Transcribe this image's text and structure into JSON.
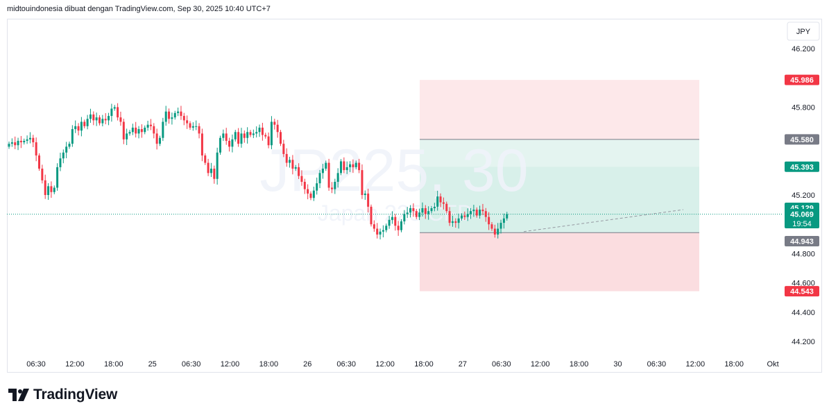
{
  "header": {
    "caption": "midtouindonesia dibuat dengan TradingView.com, Sep 30, 2025 10:40 UTC+7"
  },
  "watermark": {
    "symbol": "JP225, 30",
    "description": "Japan 225 CFD"
  },
  "currency_button": "JPY",
  "brand": {
    "name": "TradingView"
  },
  "colors": {
    "up": "#089981",
    "down": "#f23645",
    "stop_zone": "#fbdde0",
    "target_zone": "#d8f0ea",
    "marker_grey": "#787b86",
    "axis_text": "#131722"
  },
  "chart_data": {
    "type": "candlestick",
    "timeframe": "30",
    "y_axis": {
      "range": [
        44.1,
        46.35
      ],
      "ticks": [
        "46.200",
        "45.800",
        "45.200",
        "44.800",
        "44.600",
        "44.400",
        "44.200"
      ],
      "tick_values": [
        46.2,
        45.8,
        45.2,
        44.8,
        44.6,
        44.4,
        44.2
      ]
    },
    "x_axis": {
      "labels": [
        "06:30",
        "12:00",
        "18:00",
        "25",
        "06:30",
        "12:00",
        "18:00",
        "26",
        "06:30",
        "12:00",
        "18:00",
        "27",
        "06:30",
        "12:00",
        "18:00",
        "30",
        "06:30",
        "12:00",
        "18:00",
        "Okt"
      ]
    },
    "price_labels": [
      {
        "value": "45.986",
        "price": 45.986,
        "kind": "stop"
      },
      {
        "value": "45.580",
        "price": 45.58,
        "kind": "entry"
      },
      {
        "value": "45.393",
        "price": 45.393,
        "kind": "target"
      },
      {
        "value": "45.129",
        "price": 45.129,
        "kind": "target"
      },
      {
        "value": "45.069",
        "price": 45.069,
        "kind": "last",
        "countdown": "19:54"
      },
      {
        "value": "44.943",
        "price": 44.943,
        "kind": "entry"
      },
      {
        "value": "44.543",
        "price": 44.543,
        "kind": "stop"
      }
    ],
    "last_price": 45.069,
    "positions": [
      {
        "type": "short",
        "stop": 45.986,
        "entry": 45.58,
        "target": 45.129
      },
      {
        "type": "long",
        "stop": 44.543,
        "entry": 44.943,
        "target": 45.393
      }
    ],
    "trend_line": {
      "from_price": 44.95,
      "to_price": 45.1
    },
    "candles_close": [
      45.55,
      45.56,
      45.54,
      45.57,
      45.56,
      45.57,
      45.58,
      45.59,
      45.56,
      45.47,
      45.38,
      45.3,
      45.2,
      45.26,
      45.22,
      45.25,
      45.39,
      45.45,
      45.49,
      45.53,
      45.55,
      45.65,
      45.67,
      45.64,
      45.7,
      45.67,
      45.72,
      45.75,
      45.71,
      45.73,
      45.69,
      45.72,
      45.71,
      45.74,
      45.79,
      45.8,
      45.73,
      45.7,
      45.58,
      45.62,
      45.63,
      45.66,
      45.62,
      45.65,
      45.63,
      45.66,
      45.68,
      45.67,
      45.62,
      45.55,
      45.59,
      45.7,
      45.77,
      45.72,
      45.73,
      45.76,
      45.77,
      45.74,
      45.71,
      45.69,
      45.66,
      45.67,
      45.67,
      45.62,
      45.47,
      45.42,
      45.35,
      45.38,
      45.31,
      45.49,
      45.59,
      45.62,
      45.57,
      45.53,
      45.58,
      45.63,
      45.55,
      45.62,
      45.59,
      45.63,
      45.61,
      45.62,
      45.63,
      45.66,
      45.61,
      45.6,
      45.54,
      45.7,
      45.68,
      45.63,
      45.55,
      45.48,
      45.42,
      45.44,
      45.38,
      45.39,
      45.33,
      45.29,
      45.24,
      45.21,
      45.18,
      45.23,
      45.28,
      45.35,
      45.38,
      45.42,
      45.25,
      45.24,
      45.29,
      45.35,
      45.43,
      45.37,
      45.39,
      45.41,
      45.39,
      45.42,
      45.37,
      45.2,
      45.21,
      45.12,
      45.0,
      44.97,
      44.93,
      44.95,
      44.96,
      44.99,
      45.03,
      45.05,
      44.99,
      44.96,
      45.02,
      45.07,
      45.08,
      45.11,
      45.09,
      45.05,
      45.08,
      45.11,
      45.07,
      45.09,
      45.11,
      45.12,
      45.19,
      45.15,
      45.14,
      45.09,
      45.01,
      45.02,
      45.01,
      45.04,
      45.06,
      45.05,
      45.07,
      45.09,
      45.1,
      45.06,
      45.1,
      45.09,
      45.05,
      45.0,
      44.97,
      44.93,
      44.97,
      45.01,
      45.04,
      45.07
    ],
    "x_axis_label_description": "dates Sep 24 2025 – Oct 1 2025, 30-minute candles"
  }
}
